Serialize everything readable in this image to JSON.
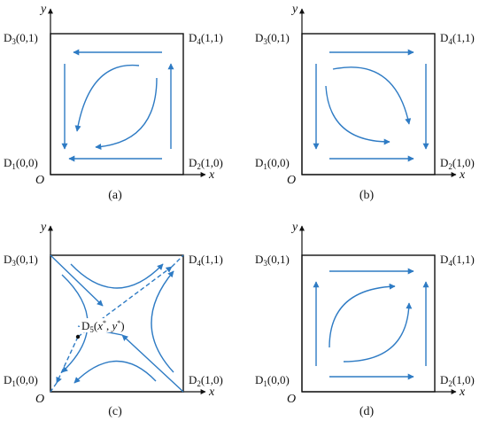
{
  "axes": {
    "x": "x",
    "y": "y",
    "origin": "O"
  },
  "colors": {
    "arrow": "#2e7bc4",
    "frame": "#111111"
  },
  "panels": [
    {
      "id": "a",
      "caption": "(a)",
      "corners": [
        {
          "base": "D",
          "sub": "3",
          "coord": "(0,1)"
        },
        {
          "base": "D",
          "sub": "4",
          "coord": "(1,1)"
        },
        {
          "base": "D",
          "sub": "1",
          "coord": "(0,0)"
        },
        {
          "base": "D",
          "sub": "2",
          "coord": "(1,0)"
        }
      ]
    },
    {
      "id": "b",
      "caption": "(b)",
      "corners": [
        {
          "base": "D",
          "sub": "3",
          "coord": "(0,1)"
        },
        {
          "base": "D",
          "sub": "4",
          "coord": "(1,1)"
        },
        {
          "base": "D",
          "sub": "1",
          "coord": "(0,0)"
        },
        {
          "base": "D",
          "sub": "2",
          "coord": "(1,0)"
        }
      ]
    },
    {
      "id": "c",
      "caption": "(c)",
      "corners": [
        {
          "base": "D",
          "sub": "3",
          "coord": "(0,1)"
        },
        {
          "base": "D",
          "sub": "4",
          "coord": "(1,1)"
        },
        {
          "base": "D",
          "sub": "1",
          "coord": "(0,0)"
        },
        {
          "base": "D",
          "sub": "2",
          "coord": "(1,0)"
        }
      ],
      "saddle": {
        "base": "D",
        "sub": "5",
        "open": "(",
        "x": "x",
        "xsup": "*",
        "sep": ", ",
        "y": "y",
        "ysup": "*",
        "close": ")"
      }
    },
    {
      "id": "d",
      "caption": "(d)",
      "corners": [
        {
          "base": "D",
          "sub": "3",
          "coord": "(0,1)"
        },
        {
          "base": "D",
          "sub": "4",
          "coord": "(1,1)"
        },
        {
          "base": "D",
          "sub": "1",
          "coord": "(0,0)"
        },
        {
          "base": "D",
          "sub": "2",
          "coord": "(1,0)"
        }
      ]
    }
  ]
}
